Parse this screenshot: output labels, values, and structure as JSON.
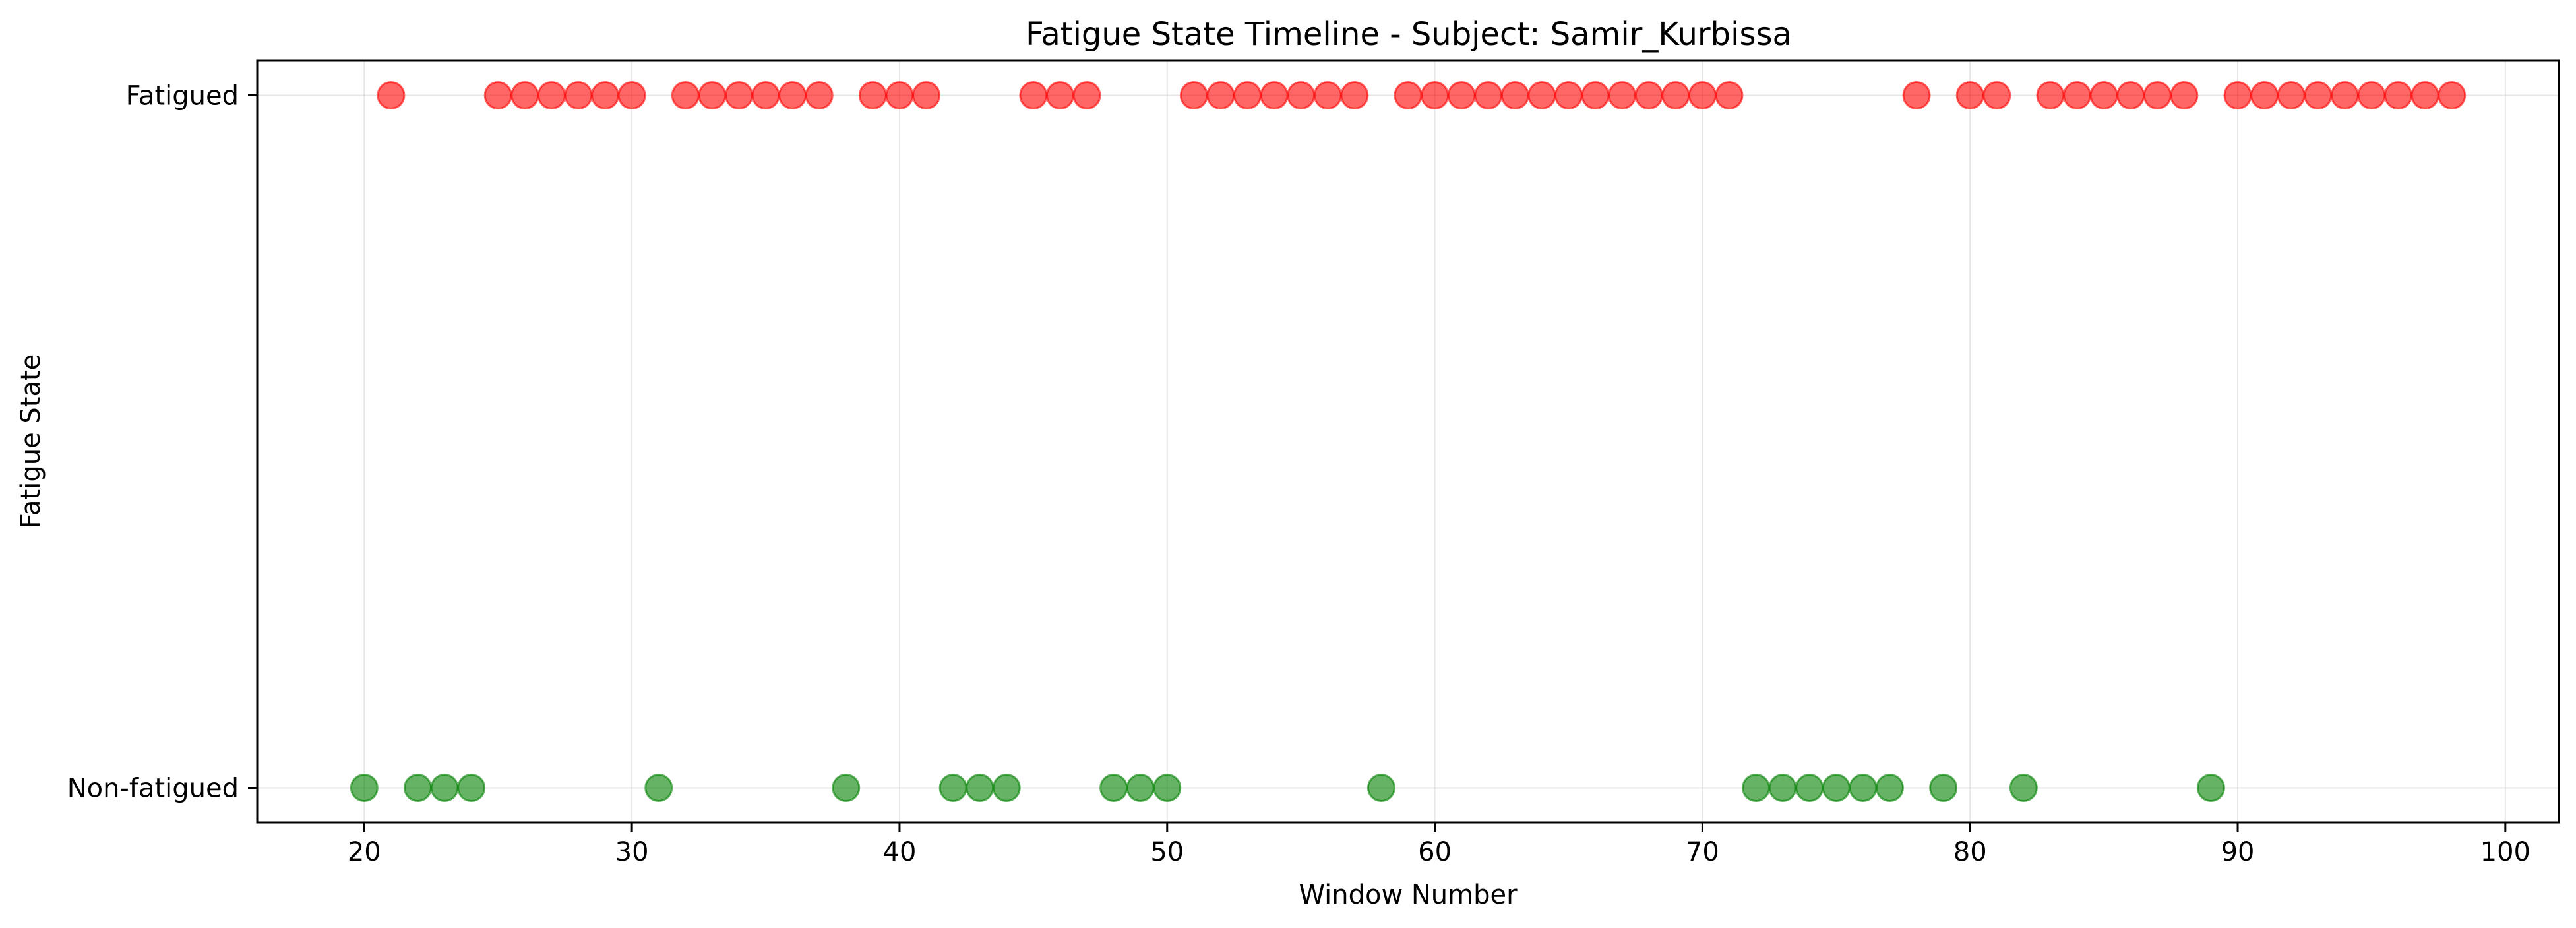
{
  "chart_data": {
    "type": "scatter",
    "title": "Fatigue State Timeline - Subject: Samir_Kurbissa",
    "xlabel": "Window Number",
    "ylabel": "Fatigue State",
    "xlim": [
      16,
      102
    ],
    "ylim": [
      -0.05,
      1.05
    ],
    "x_ticks": [
      20,
      30,
      40,
      50,
      60,
      70,
      80,
      90,
      100
    ],
    "y_ticks": [
      {
        "value": 0,
        "label": "Non-fatigued"
      },
      {
        "value": 1,
        "label": "Fatigued"
      }
    ],
    "grid": true,
    "legend": "none",
    "series": [
      {
        "state": 1,
        "color": "#ff0000",
        "x": [
          21,
          25,
          26,
          27,
          28,
          29,
          30,
          32,
          33,
          34,
          35,
          36,
          37,
          39,
          40,
          41,
          45,
          46,
          47,
          51,
          52,
          53,
          54,
          55,
          56,
          57,
          59,
          60,
          61,
          62,
          63,
          64,
          65,
          66,
          67,
          68,
          69,
          70,
          71,
          78,
          80,
          81,
          83,
          84,
          85,
          86,
          87,
          88,
          90,
          91,
          92,
          93,
          94,
          95,
          96,
          97,
          98
        ]
      },
      {
        "state": 0,
        "color": "#008000",
        "x": [
          20,
          22,
          23,
          24,
          31,
          38,
          42,
          43,
          44,
          48,
          49,
          50,
          58,
          72,
          73,
          74,
          75,
          76,
          77,
          79,
          82,
          89
        ]
      }
    ]
  }
}
